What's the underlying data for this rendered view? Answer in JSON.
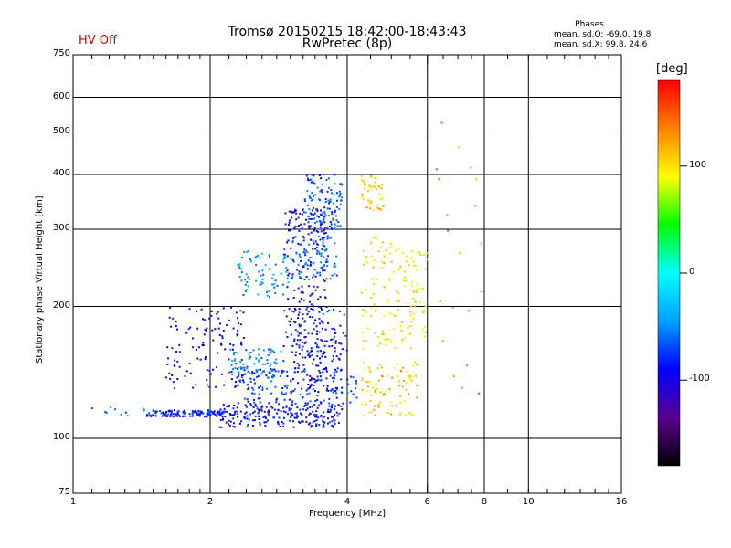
{
  "header": {
    "hv_status": "HV Off",
    "title_line1": "Tromsø 20150215 18:42:00-18:43:43",
    "title_line2": "RwPretec (8p)",
    "phase_title": "Phases",
    "phase_o": "mean, sd,O: -69.0, 19.8",
    "phase_x": "mean, sd,X:  99.8, 24.6"
  },
  "colors": {
    "background": "#ffffff",
    "axes": "#000000",
    "grid": "#000000",
    "hv_status": "#d00000"
  },
  "chart_data": {
    "type": "scatter",
    "xlabel": "Frequency [MHz]",
    "ylabel": "Stationary phase Virtual Height [km]",
    "x_scale": "log",
    "y_scale": "log",
    "xlim": [
      1,
      16
    ],
    "ylim": [
      75,
      750
    ],
    "x_ticks": [
      1,
      2,
      4,
      6,
      8,
      16
    ],
    "x_tick_labels": [
      "1",
      "2",
      "4",
      "6",
      "8",
      "16"
    ],
    "x_minor_ticks": [
      1.1,
      1.2,
      1.3,
      1.4,
      1.5,
      1.6,
      1.7,
      1.8,
      1.9,
      2.2,
      2.4,
      2.6,
      2.8,
      3.0,
      3.2,
      3.4,
      3.6,
      3.8,
      4.5,
      5.0,
      5.5,
      6.5,
      7.0,
      7.5,
      9.0,
      10.0,
      11.0,
      12.0,
      13.0,
      14.0,
      15.0
    ],
    "x_grid": [
      2,
      4,
      6,
      8,
      10
    ],
    "x_extra_labels": [
      {
        "x": 10,
        "label": "10"
      }
    ],
    "y_ticks": [
      75,
      100,
      200,
      300,
      400,
      500,
      600,
      750
    ],
    "y_tick_labels": [
      "75",
      "100",
      "200",
      "300",
      "400",
      "500",
      "600",
      "750"
    ],
    "y_grid": [
      100,
      200,
      300,
      400,
      500,
      600
    ],
    "grid": true,
    "colorbar": {
      "label": "[deg]",
      "min": -180,
      "max": 180,
      "ticks": [
        100,
        0,
        -100
      ],
      "tick_labels": [
        "100",
        "0",
        "-100"
      ],
      "stops": [
        "#000000",
        "#5a0090",
        "#0000ff",
        "#00a0ff",
        "#00ffff",
        "#00ff00",
        "#ffff00",
        "#ff8000",
        "#ff0000"
      ]
    },
    "series": [
      {
        "name": "O",
        "phase_mean": -69.0,
        "phase_sd": 19.8,
        "clusters": [
          {
            "f": [
              1.45,
              2.15
            ],
            "h": [
              112,
              116
            ],
            "phase": -80,
            "n": 140
          },
          {
            "f": [
              2.1,
              3.9
            ],
            "h": [
              106,
              120
            ],
            "phase": -90,
            "n": 220
          },
          {
            "f": [
              2.3,
              4.2
            ],
            "h": [
              120,
              145
            ],
            "phase": -75,
            "n": 180
          },
          {
            "f": [
              1.6,
              2.4
            ],
            "h": [
              130,
              200
            ],
            "phase": -95,
            "n": 120
          },
          {
            "f": [
              2.2,
              2.9
            ],
            "h": [
              140,
              160
            ],
            "phase": -55,
            "n": 70
          },
          {
            "f": [
              2.9,
              3.6
            ],
            "h": [
              130,
              340
            ],
            "phase": -100,
            "n": 220
          },
          {
            "f": [
              3.0,
              4.0
            ],
            "h": [
              150,
              200
            ],
            "phase": -85,
            "n": 100
          },
          {
            "f": [
              2.3,
              3.0
            ],
            "h": [
              210,
              270
            ],
            "phase": -50,
            "n": 70
          },
          {
            "f": [
              3.2,
              3.9
            ],
            "h": [
              300,
              400
            ],
            "phase": -70,
            "n": 120
          },
          {
            "f": [
              3.0,
              3.8
            ],
            "h": [
              230,
              290
            ],
            "phase": -60,
            "n": 90
          },
          {
            "f": [
              1.1,
              1.45
            ],
            "h": [
              112,
              120
            ],
            "phase": -60,
            "n": 10
          }
        ]
      },
      {
        "name": "X",
        "phase_mean": 99.8,
        "phase_sd": 24.6,
        "clusters": [
          {
            "f": [
              4.3,
              5.7
            ],
            "h": [
              112,
              150
            ],
            "phase": 110,
            "n": 90
          },
          {
            "f": [
              4.3,
              5.6
            ],
            "h": [
              160,
              290
            ],
            "phase": 100,
            "n": 110
          },
          {
            "f": [
              4.3,
              4.8
            ],
            "h": [
              330,
              400
            ],
            "phase": 105,
            "n": 50
          },
          {
            "f": [
              5.5,
              6.0
            ],
            "h": [
              170,
              270
            ],
            "phase": 90,
            "n": 40
          },
          {
            "f": [
              6.2,
              8.0
            ],
            "h": [
              120,
              580
            ],
            "phase": 130,
            "n": 20
          }
        ]
      }
    ]
  }
}
